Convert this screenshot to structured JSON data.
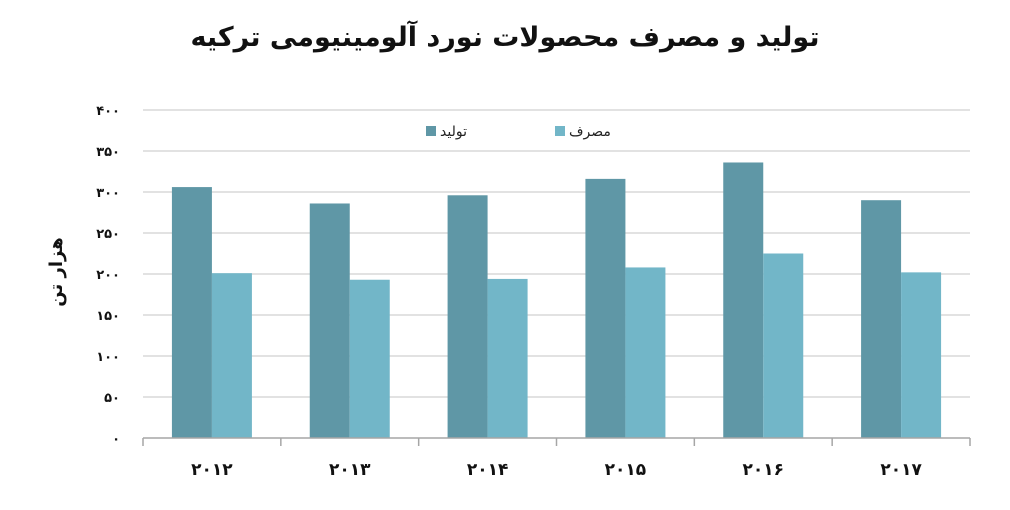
{
  "chart_data": {
    "type": "bar",
    "title": "تولید و مصرف محصولات نورد آلومینیومی ترکیه",
    "ylabel": "هزار تن",
    "xlabel": "",
    "categories": [
      "۲۰۱۲",
      "۲۰۱۳",
      "۲۰۱۴",
      "۲۰۱۵",
      "۲۰۱۶",
      "۲۰۱۷"
    ],
    "series": [
      {
        "name": "تولید",
        "color": "#5f97a6",
        "values": [
          306,
          286,
          296,
          316,
          336,
          290
        ]
      },
      {
        "name": "مصرف",
        "color": "#72b6c8",
        "values": [
          201,
          193,
          194,
          208,
          225,
          202
        ]
      }
    ],
    "ylim": [
      0,
      400
    ],
    "yticks": [
      0,
      50,
      100,
      150,
      200,
      250,
      300,
      350,
      400
    ],
    "ytick_labels": [
      "۰",
      "۵۰",
      "۱۰۰",
      "۱۵۰",
      "۲۰۰",
      "۲۵۰",
      "۳۰۰",
      "۳۵۰",
      "۴۰۰"
    ],
    "grid": true,
    "legend_position": "top-center",
    "colors": {
      "grid": "#d9d9d9",
      "axis": "#a6a6a6"
    }
  }
}
